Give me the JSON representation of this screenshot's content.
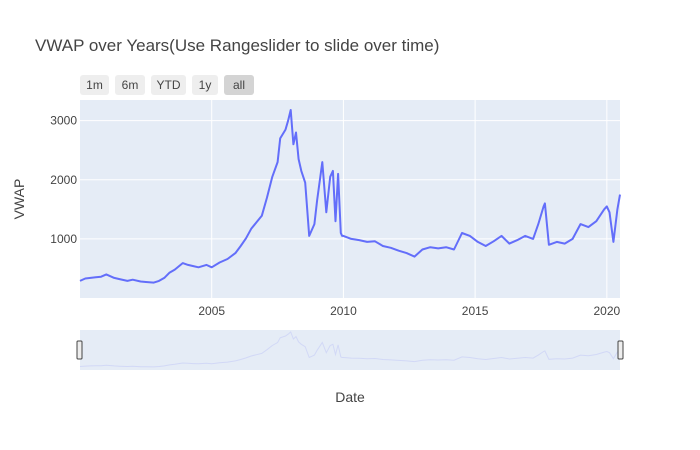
{
  "chart_data": {
    "type": "line",
    "title": "VWAP over Years(Use Rangeslider to slide over time)",
    "xlabel": "Date",
    "ylabel": "VWAP",
    "xlim": [
      2000.0,
      2020.5
    ],
    "ylim": [
      0,
      3350
    ],
    "x_ticks": [
      {
        "value": 2005,
        "label": "2005"
      },
      {
        "value": 2010,
        "label": "2010"
      },
      {
        "value": 2015,
        "label": "2015"
      },
      {
        "value": 2020,
        "label": "2020"
      }
    ],
    "y_ticks": [
      {
        "value": 1000,
        "label": "1000"
      },
      {
        "value": 2000,
        "label": "2000"
      },
      {
        "value": 3000,
        "label": "3000"
      }
    ],
    "range_selector": [
      {
        "label": "1m",
        "active": false
      },
      {
        "label": "6m",
        "active": false
      },
      {
        "label": "YTD",
        "active": false
      },
      {
        "label": "1y",
        "active": false
      },
      {
        "label": "all",
        "active": true
      }
    ],
    "grid": true,
    "line_color": "#636efa",
    "series": [
      {
        "x": [
          2000.0,
          2000.2,
          2000.4,
          2000.6,
          2000.8,
          2001.0,
          2001.3,
          2001.5,
          2001.8,
          2002.0,
          2002.3,
          2002.5,
          2002.8,
          2003.0,
          2003.2,
          2003.4,
          2003.6,
          2003.9,
          2004.1,
          2004.3,
          2004.5,
          2004.8,
          2005.0,
          2005.3,
          2005.6,
          2005.9,
          2006.1,
          2006.3,
          2006.5,
          2006.7,
          2006.9,
          2007.1,
          2007.3,
          2007.5,
          2007.6,
          2007.8,
          2007.9,
          2008.0,
          2008.1,
          2008.2,
          2008.3,
          2008.4,
          2008.55,
          2008.7,
          2008.8,
          2008.9,
          2009.0,
          2009.2,
          2009.35,
          2009.5,
          2009.6,
          2009.7,
          2009.8,
          2009.9,
          2009.95,
          2010.0,
          2010.3,
          2010.6,
          2010.9,
          2011.2,
          2011.5,
          2011.8,
          2012.1,
          2012.4,
          2012.7,
          2013.0,
          2013.3,
          2013.6,
          2013.9,
          2014.2,
          2014.5,
          2014.8,
          2015.1,
          2015.4,
          2015.7,
          2016.0,
          2016.3,
          2016.6,
          2016.9,
          2017.2,
          2017.4,
          2017.6,
          2017.65,
          2017.8,
          2018.1,
          2018.4,
          2018.7,
          2019.0,
          2019.3,
          2019.6,
          2019.9,
          2020.0,
          2020.1,
          2020.25,
          2020.4,
          2020.5
        ],
        "y": [
          290,
          330,
          340,
          350,
          360,
          400,
          340,
          320,
          290,
          310,
          280,
          270,
          260,
          290,
          340,
          430,
          480,
          590,
          560,
          540,
          520,
          560,
          520,
          600,
          660,
          760,
          880,
          1010,
          1170,
          1280,
          1390,
          1700,
          2050,
          2300,
          2700,
          2850,
          3000,
          3180,
          2600,
          2800,
          2350,
          2150,
          1950,
          1050,
          1150,
          1250,
          1650,
          2300,
          1450,
          2050,
          2150,
          1300,
          2100,
          1100,
          1050,
          1050,
          1000,
          980,
          950,
          960,
          880,
          850,
          800,
          760,
          700,
          820,
          860,
          840,
          860,
          820,
          1100,
          1050,
          950,
          880,
          960,
          1050,
          920,
          980,
          1050,
          1000,
          1250,
          1550,
          1600,
          900,
          950,
          920,
          1000,
          1250,
          1200,
          1300,
          1500,
          1550,
          1450,
          950,
          1500,
          1750
        ]
      }
    ]
  }
}
